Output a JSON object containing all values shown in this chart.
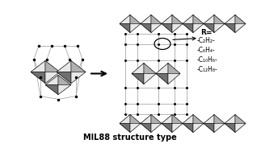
{
  "title": "MIL88 structure type",
  "title_fontsize": 7,
  "title_fontweight": "bold",
  "background_color": "#ffffff",
  "r_label": "R=",
  "linker_labels": [
    "-C₂H₂-",
    "-C₆H₄-",
    "-C₁₀H₆-",
    "-C₁₂H₈-"
  ],
  "label_fontsize": 6.0,
  "fc_light": "#e8e8e8",
  "fc_mid": "#b0b0b0",
  "fc_dark": "#707070",
  "fc_vdark": "#444444",
  "ec": "#000000",
  "dot_color": "#000000",
  "line_color": "#999999",
  "lw_thin": 0.4,
  "lw_line": 0.5
}
